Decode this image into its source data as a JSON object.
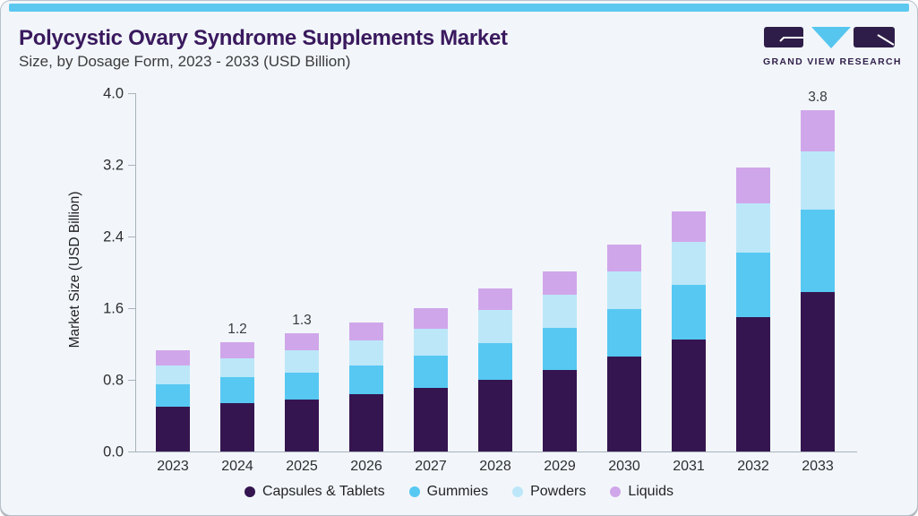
{
  "header": {
    "title": "Polycystic Ovary Syndrome Supplements Market",
    "subtitle": "Size, by Dosage Form, 2023 - 2033 (USD Billion)"
  },
  "logo": {
    "text": "GRAND VIEW RESEARCH",
    "purple": "#2f1d49",
    "blue": "#56c6ef"
  },
  "colors": {
    "accent_bar": "#5cc8f0",
    "title_purple": "#3a195e",
    "axis_gray": "#a9b2ba",
    "card_background": "#f2f6fa"
  },
  "chart_data": {
    "type": "bar",
    "stacked": true,
    "title": "Polycystic Ovary Syndrome Supplements Market Size, by Dosage Form, 2023 - 2033 (USD Billion)",
    "ylabel": "Market Size (USD Billion)",
    "xlabel": "",
    "ylim": [
      0,
      4.0
    ],
    "yticks": [
      "0.0",
      "0.8",
      "1.6",
      "2.4",
      "3.2",
      "4.0"
    ],
    "grid": false,
    "legend_position": "bottom",
    "categories": [
      "2023",
      "2024",
      "2025",
      "2026",
      "2027",
      "2028",
      "2029",
      "2030",
      "2031",
      "2032",
      "2033"
    ],
    "series": [
      {
        "name": "Capsules & Tablets",
        "color": "#351550",
        "values": [
          0.5,
          0.54,
          0.58,
          0.64,
          0.71,
          0.8,
          0.91,
          1.06,
          1.25,
          1.5,
          1.78
        ]
      },
      {
        "name": "Gummies",
        "color": "#57c8f2",
        "values": [
          0.25,
          0.29,
          0.3,
          0.32,
          0.36,
          0.41,
          0.47,
          0.53,
          0.61,
          0.72,
          0.92
        ]
      },
      {
        "name": "Powders",
        "color": "#bce7f9",
        "values": [
          0.21,
          0.21,
          0.25,
          0.28,
          0.3,
          0.37,
          0.37,
          0.42,
          0.48,
          0.55,
          0.65
        ]
      },
      {
        "name": "Liquids",
        "color": "#d0a6ea",
        "values": [
          0.17,
          0.18,
          0.19,
          0.2,
          0.23,
          0.24,
          0.26,
          0.3,
          0.34,
          0.4,
          0.46
        ]
      }
    ],
    "bar_labels": [
      null,
      "1.2",
      "1.3",
      null,
      null,
      null,
      null,
      null,
      null,
      null,
      "3.8"
    ]
  }
}
